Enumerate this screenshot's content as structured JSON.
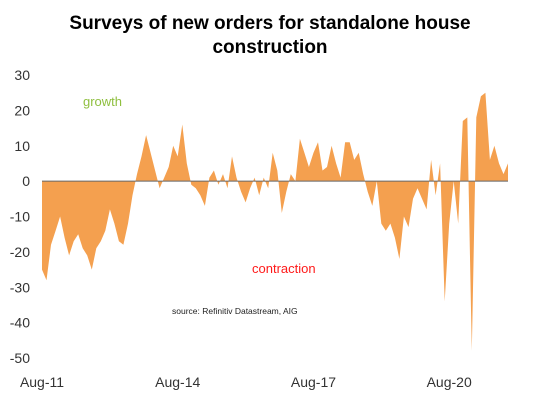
{
  "chart_data": {
    "type": "area",
    "title_lines": [
      "Surveys of new orders for standalone house",
      "construction"
    ],
    "xlabel": "",
    "ylabel": "",
    "ylim": [
      -50,
      30
    ],
    "yticks": [
      30,
      20,
      10,
      0,
      -10,
      -20,
      -30,
      -40,
      -50
    ],
    "xlim": [
      2011.6,
      2021.9
    ],
    "xticks": [
      {
        "label": "Aug-11",
        "x": 2011.6
      },
      {
        "label": "Aug-14",
        "x": 2014.6
      },
      {
        "label": "Aug-17",
        "x": 2017.6
      },
      {
        "label": "Aug-20",
        "x": 2020.6
      }
    ],
    "grid": false,
    "legend": "none",
    "colors": {
      "fill": "#f4a04f",
      "growth": "#8fbf3f",
      "contraction": "#ff1a1a"
    },
    "annotations": {
      "growth": "growth",
      "contraction": "contraction",
      "source": "source:  Refinitiv Datastream, AIG"
    },
    "series": [
      {
        "x": [
          2011.6,
          2011.7,
          2011.8,
          2011.9,
          2012.0,
          2012.1,
          2012.2,
          2012.3,
          2012.4,
          2012.5,
          2012.6,
          2012.7,
          2012.8,
          2012.9,
          2013.0,
          2013.1,
          2013.2,
          2013.3,
          2013.4,
          2013.5,
          2013.6,
          2013.7,
          2013.8,
          2013.9,
          2014.0,
          2014.1,
          2014.2,
          2014.3,
          2014.4,
          2014.5,
          2014.6,
          2014.7,
          2014.8,
          2014.9,
          2015.0,
          2015.1,
          2015.2,
          2015.3,
          2015.4,
          2015.5,
          2015.6,
          2015.7,
          2015.8,
          2015.9,
          2016.0,
          2016.1,
          2016.2,
          2016.3,
          2016.4,
          2016.5,
          2016.6,
          2016.7,
          2016.8,
          2016.9,
          2017.0,
          2017.1,
          2017.2,
          2017.3,
          2017.4,
          2017.5,
          2017.6,
          2017.7,
          2017.8,
          2017.9,
          2018.0,
          2018.1,
          2018.2,
          2018.3,
          2018.4,
          2018.5,
          2018.6,
          2018.7,
          2018.8,
          2018.9,
          2019.0,
          2019.1,
          2019.2,
          2019.3,
          2019.4,
          2019.5,
          2019.6,
          2019.7,
          2019.8,
          2019.9,
          2020.0,
          2020.1,
          2020.2,
          2020.3,
          2020.4,
          2020.5,
          2020.6,
          2020.7,
          2020.8,
          2020.9,
          2021.0,
          2021.1,
          2021.2,
          2021.3,
          2021.4,
          2021.5,
          2021.6,
          2021.7,
          2021.8,
          2021.9
        ],
        "values": [
          -25,
          -28,
          -18,
          -14,
          -10,
          -16,
          -21,
          -17,
          -15,
          -19,
          -21,
          -25,
          -19,
          -17,
          -14,
          -8,
          -12,
          -17,
          -18,
          -12,
          -4,
          2,
          7,
          13,
          8,
          3,
          -2,
          1,
          4,
          10,
          7,
          16,
          5,
          -1,
          -2,
          -4,
          -7,
          1,
          3,
          -1,
          2,
          -2,
          7,
          1,
          -3,
          -6,
          -2,
          1,
          -4,
          1,
          -2,
          8,
          3,
          -9,
          -3,
          2,
          0,
          12,
          8,
          4,
          8,
          11,
          3,
          4,
          10,
          5,
          1,
          11,
          11,
          6,
          8,
          2,
          -3,
          -7,
          0,
          -12,
          -14,
          -12,
          -16,
          -22,
          -10,
          -13,
          -5,
          -2,
          -5,
          -8,
          6,
          -4,
          5,
          -34,
          -12,
          0,
          -12,
          17,
          18,
          -48,
          18,
          24,
          25,
          6,
          10,
          5,
          2,
          5
        ]
      }
    ]
  }
}
